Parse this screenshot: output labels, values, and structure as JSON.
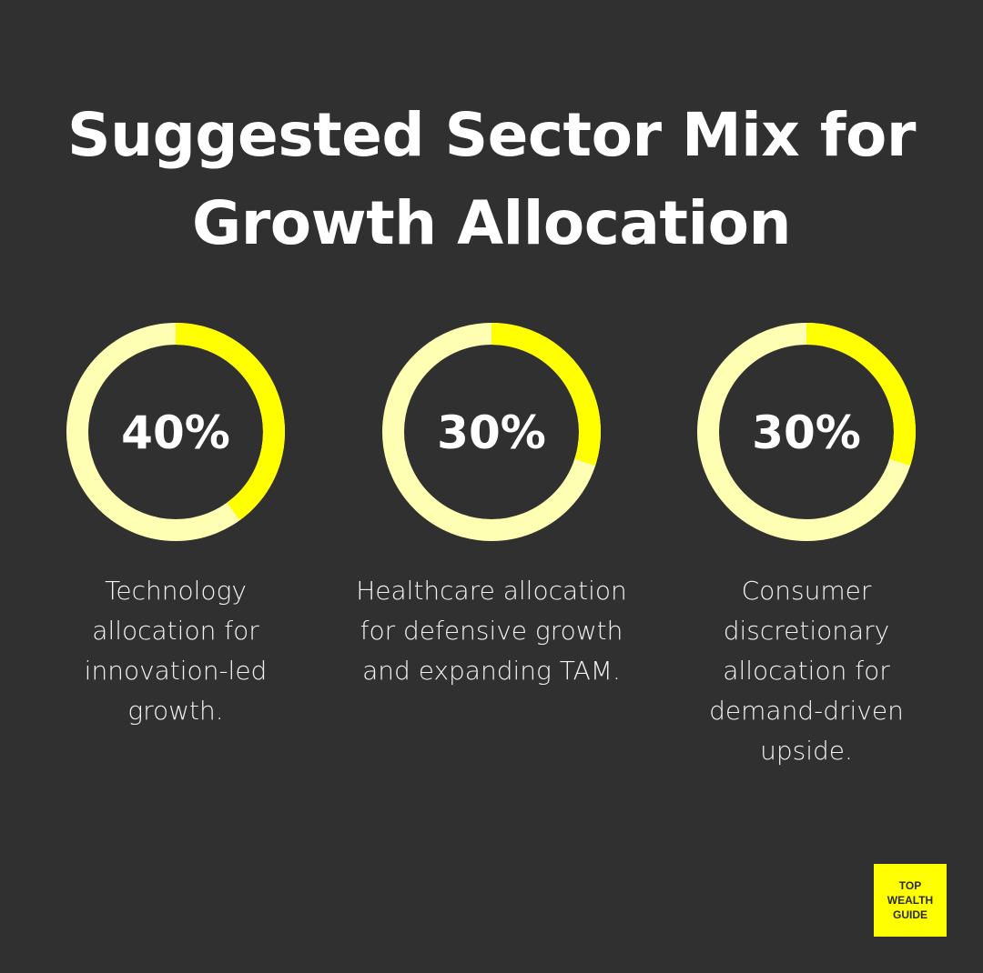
{
  "title_line1": "Suggested Sector Mix for",
  "title_line2": "Growth Allocation",
  "colors": {
    "background": "#303030",
    "accent": "#ffff00",
    "track": "#ffffb3"
  },
  "chart_data": [
    {
      "type": "pie",
      "label": "40%",
      "value": 40,
      "description": "Technology allocation for innovation-led growth."
    },
    {
      "type": "pie",
      "label": "30%",
      "value": 30,
      "description": "Healthcare allocation for defensive growth and expanding TAM."
    },
    {
      "type": "pie",
      "label": "30%",
      "value": 30,
      "description": "Consumer discretionary allocation for demand-driven upside."
    }
  ],
  "logo": {
    "line1": "TOP",
    "line2": "WEALTH",
    "line3": "GUIDE"
  }
}
